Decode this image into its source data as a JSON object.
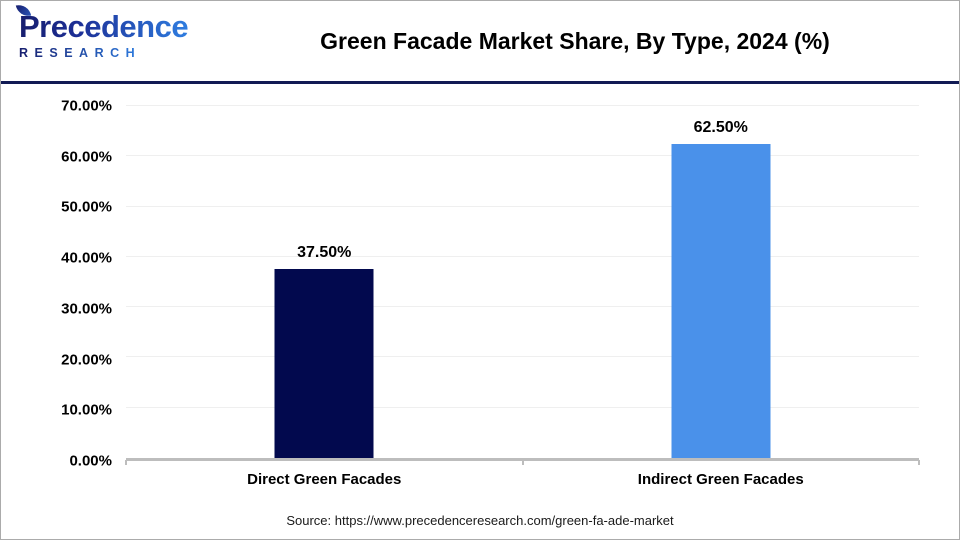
{
  "header": {
    "logo": {
      "brand": "Precedence",
      "sub": "RESEARCH"
    },
    "title": "Green Facade Market Share, By Type, 2024 (%)"
  },
  "chart_data": {
    "type": "bar",
    "title": "Green Facade Market Share, By Type, 2024 (%)",
    "categories": [
      "Direct Green Facades",
      "Indirect Green Facades"
    ],
    "values": [
      37.5,
      62.5
    ],
    "value_labels": [
      "37.50%",
      "62.50%"
    ],
    "bar_colors": [
      "#02094e",
      "#4a91ea"
    ],
    "xlabel": "",
    "ylabel": "",
    "ylim": [
      0,
      70
    ],
    "ytick_step": 10,
    "ytick_labels": [
      "0.00%",
      "10.00%",
      "20.00%",
      "30.00%",
      "40.00%",
      "50.00%",
      "60.00%",
      "70.00%"
    ],
    "grid": true,
    "legend": false
  },
  "footer": {
    "source": "Source: https://www.precedenceresearch.com/green-fa-ade-market"
  },
  "colors": {
    "bar_direct": "#02094e",
    "bar_indirect": "#4a91ea",
    "header_divider": "#111a54",
    "gridline": "#efefef",
    "axis_line": "#bdbdbd",
    "logo_navy": "#171e6e",
    "logo_blue": "#2f7de0"
  }
}
